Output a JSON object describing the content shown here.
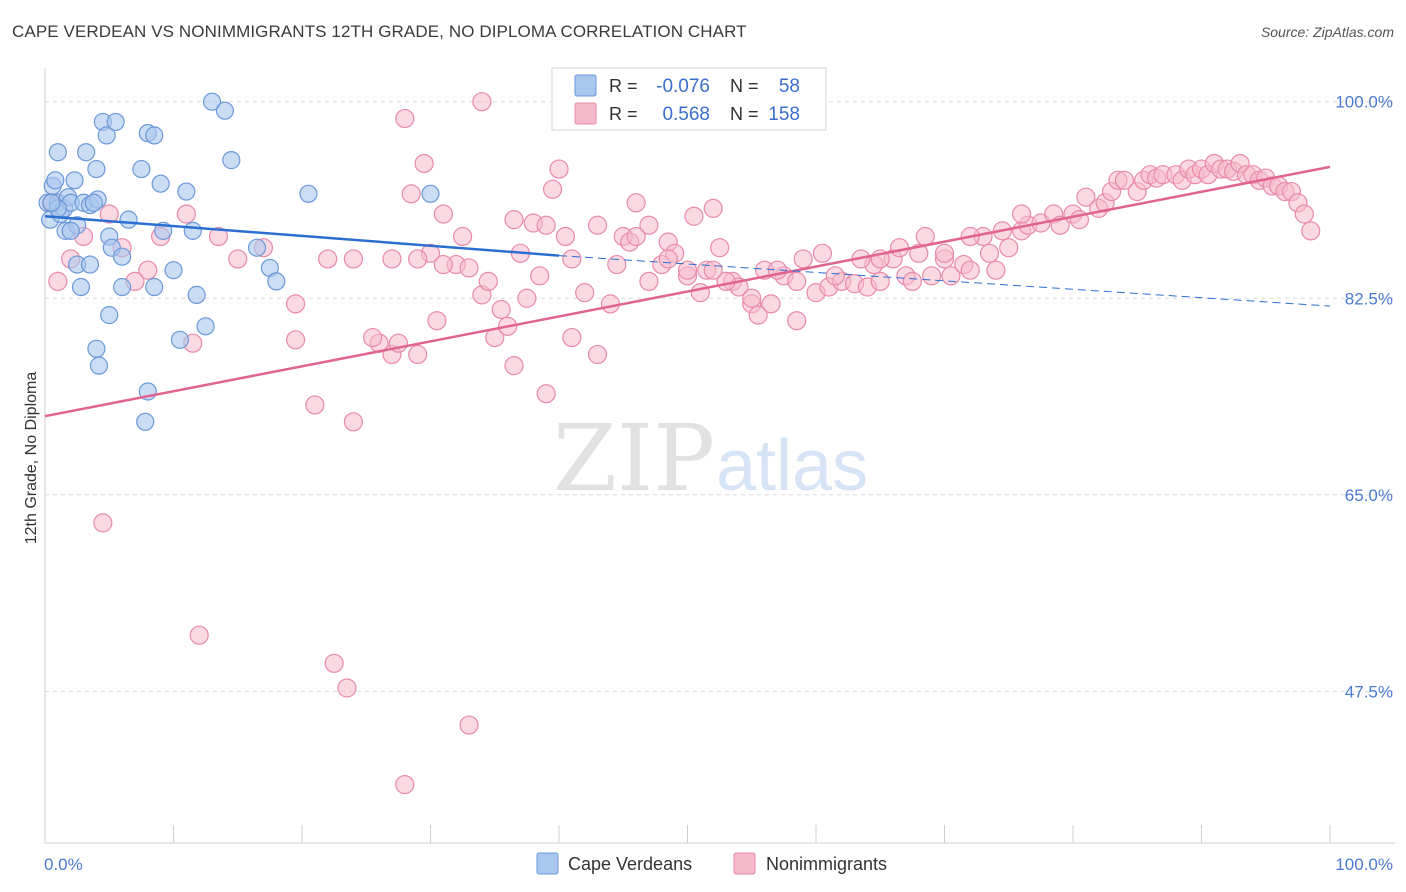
{
  "header": {
    "title": "CAPE VERDEAN VS NONIMMIGRANTS 12TH GRADE, NO DIPLOMA CORRELATION CHART",
    "source": "Source: ZipAtlas.com"
  },
  "watermark": {
    "zip": "ZIP",
    "atlas": "atlas"
  },
  "stats": {
    "r_label": "R =",
    "n_label": "N =",
    "blue": {
      "r": "-0.076",
      "n": "58"
    },
    "pink": {
      "r": "0.568",
      "n": "158"
    }
  },
  "colors": {
    "blue_fill": "#a9c6ef",
    "blue_stroke": "#6b98d8",
    "blue_line": "#2c6fd1",
    "pink_fill": "#f6b9cc",
    "pink_stroke": "#e98aa9",
    "pink_line": "#e0648f",
    "grid": "#dcdcdc",
    "tick_text": "#4a7bd0"
  },
  "chart_data": {
    "type": "scatter",
    "title": "CAPE VERDEAN VS NONIMMIGRANTS 12TH GRADE, NO DIPLOMA CORRELATION CHART",
    "xlabel": "",
    "ylabel": "12th Grade, No Diploma",
    "xlim": [
      0,
      100
    ],
    "ylim": [
      34,
      103
    ],
    "y_ticks": [
      100.0,
      82.5,
      65.0,
      47.5
    ],
    "y_tick_labels": [
      "100.0%",
      "82.5%",
      "65.0%",
      "47.5%"
    ],
    "x_tick_labels": [
      "0.0%",
      "100.0%"
    ],
    "grid": true,
    "legend_position": "bottom-center",
    "series": [
      {
        "name": "Cape Verdeans",
        "r": -0.076,
        "n": 58,
        "trend": {
          "x": [
            0,
            40
          ],
          "y": [
            89.8,
            86.3
          ],
          "dashed_to": [
            100,
            81.8
          ]
        },
        "points": [
          [
            0.2,
            91.0
          ],
          [
            0.4,
            89.5
          ],
          [
            0.6,
            92.5
          ],
          [
            0.8,
            93.0
          ],
          [
            1.0,
            91.0
          ],
          [
            1.2,
            90.0
          ],
          [
            1.0,
            95.5
          ],
          [
            1.5,
            90.5
          ],
          [
            1.8,
            91.5
          ],
          [
            1.6,
            88.5
          ],
          [
            2.0,
            91.0
          ],
          [
            2.5,
            89.0
          ],
          [
            2.3,
            93.0
          ],
          [
            3.0,
            91.0
          ],
          [
            3.2,
            95.5
          ],
          [
            3.5,
            90.8
          ],
          [
            4.0,
            94.0
          ],
          [
            4.1,
            91.3
          ],
          [
            4.5,
            98.2
          ],
          [
            4.8,
            97.0
          ],
          [
            5.5,
            98.2
          ],
          [
            5.0,
            88.0
          ],
          [
            5.2,
            87.0
          ],
          [
            6.0,
            86.2
          ],
          [
            6.5,
            89.5
          ],
          [
            7.5,
            94.0
          ],
          [
            8.0,
            97.2
          ],
          [
            8.5,
            97.0
          ],
          [
            9.0,
            92.7
          ],
          [
            9.2,
            88.5
          ],
          [
            10.0,
            85.0
          ],
          [
            10.5,
            78.8
          ],
          [
            11.0,
            92.0
          ],
          [
            11.5,
            88.5
          ],
          [
            11.8,
            82.8
          ],
          [
            12.5,
            80.0
          ],
          [
            13.0,
            100.0
          ],
          [
            14.0,
            99.2
          ],
          [
            14.5,
            94.8
          ],
          [
            16.5,
            87.0
          ],
          [
            17.5,
            85.2
          ],
          [
            18.0,
            84.0
          ],
          [
            20.5,
            91.8
          ],
          [
            30.0,
            91.8
          ],
          [
            2.5,
            85.5
          ],
          [
            3.5,
            85.5
          ],
          [
            2.8,
            83.5
          ],
          [
            6.0,
            83.5
          ],
          [
            8.5,
            83.5
          ],
          [
            5.0,
            81.0
          ],
          [
            4.0,
            78.0
          ],
          [
            4.2,
            76.5
          ],
          [
            8.0,
            74.2
          ],
          [
            7.8,
            71.5
          ],
          [
            2.0,
            88.5
          ],
          [
            1.0,
            90.5
          ],
          [
            0.5,
            91.0
          ],
          [
            3.8,
            91.0
          ]
        ]
      },
      {
        "name": "Nonimmigrants",
        "r": 0.568,
        "n": 158,
        "trend": {
          "x": [
            0,
            100
          ],
          "y": [
            72.0,
            94.2
          ]
        },
        "points": [
          [
            4.5,
            62.5
          ],
          [
            12.0,
            52.5
          ],
          [
            22.5,
            50.0
          ],
          [
            23.5,
            47.8
          ],
          [
            33.0,
            44.5
          ],
          [
            28.0,
            39.2
          ],
          [
            11.5,
            78.5
          ],
          [
            19.5,
            78.8
          ],
          [
            21.0,
            73.0
          ],
          [
            24.0,
            71.5
          ],
          [
            27.0,
            77.5
          ],
          [
            26.0,
            78.5
          ],
          [
            27.5,
            78.5
          ],
          [
            29.0,
            77.5
          ],
          [
            30.5,
            80.5
          ],
          [
            27.0,
            86.0
          ],
          [
            28.5,
            91.8
          ],
          [
            30.0,
            86.5
          ],
          [
            32.0,
            85.5
          ],
          [
            33.0,
            85.2
          ],
          [
            29.5,
            94.5
          ],
          [
            31.0,
            90.0
          ],
          [
            34.0,
            82.8
          ],
          [
            35.5,
            81.5
          ],
          [
            35.0,
            79.0
          ],
          [
            36.5,
            89.5
          ],
          [
            37.0,
            86.5
          ],
          [
            38.0,
            89.2
          ],
          [
            39.0,
            89.0
          ],
          [
            39.5,
            92.2
          ],
          [
            40.0,
            94.0
          ],
          [
            39.0,
            74.0
          ],
          [
            41.0,
            79.0
          ],
          [
            42.0,
            83.0
          ],
          [
            43.0,
            77.5
          ],
          [
            44.0,
            82.0
          ],
          [
            45.0,
            88.0
          ],
          [
            45.5,
            87.5
          ],
          [
            46.0,
            91.0
          ],
          [
            47.0,
            89.0
          ],
          [
            48.0,
            85.5
          ],
          [
            48.5,
            87.5
          ],
          [
            49.0,
            86.5
          ],
          [
            50.0,
            84.5
          ],
          [
            50.5,
            89.8
          ],
          [
            51.0,
            83.0
          ],
          [
            51.5,
            85.0
          ],
          [
            52.0,
            90.5
          ],
          [
            52.5,
            87.0
          ],
          [
            53.5,
            84.0
          ],
          [
            54.0,
            83.5
          ],
          [
            55.0,
            82.0
          ],
          [
            55.5,
            81.0
          ],
          [
            56.0,
            85.0
          ],
          [
            56.5,
            82.0
          ],
          [
            57.5,
            84.5
          ],
          [
            58.5,
            80.5
          ],
          [
            59.0,
            86.0
          ],
          [
            60.0,
            83.0
          ],
          [
            61.0,
            83.5
          ],
          [
            62.0,
            84.0
          ],
          [
            63.0,
            83.8
          ],
          [
            64.0,
            83.5
          ],
          [
            64.5,
            85.5
          ],
          [
            65.0,
            84.0
          ],
          [
            66.0,
            86.0
          ],
          [
            67.0,
            84.5
          ],
          [
            67.5,
            84.0
          ],
          [
            68.0,
            86.5
          ],
          [
            69.0,
            84.5
          ],
          [
            70.0,
            86.0
          ],
          [
            70.5,
            84.5
          ],
          [
            71.5,
            85.5
          ],
          [
            72.0,
            85.0
          ],
          [
            73.0,
            88.0
          ],
          [
            73.5,
            86.5
          ],
          [
            74.0,
            85.0
          ],
          [
            75.0,
            87.0
          ],
          [
            76.0,
            88.5
          ],
          [
            76.5,
            89.0
          ],
          [
            77.5,
            89.2
          ],
          [
            78.5,
            90.0
          ],
          [
            79.0,
            89.0
          ],
          [
            80.0,
            90.0
          ],
          [
            80.5,
            89.5
          ],
          [
            81.0,
            91.5
          ],
          [
            82.0,
            90.5
          ],
          [
            82.5,
            91.0
          ],
          [
            83.0,
            92.0
          ],
          [
            83.5,
            93.0
          ],
          [
            84.0,
            93.0
          ],
          [
            85.0,
            92.0
          ],
          [
            85.5,
            93.0
          ],
          [
            86.0,
            93.5
          ],
          [
            86.5,
            93.2
          ],
          [
            87.0,
            93.5
          ],
          [
            88.0,
            93.5
          ],
          [
            88.5,
            93.0
          ],
          [
            89.0,
            94.0
          ],
          [
            89.5,
            93.5
          ],
          [
            90.0,
            94.0
          ],
          [
            90.5,
            93.5
          ],
          [
            91.0,
            94.5
          ],
          [
            91.5,
            94.0
          ],
          [
            92.0,
            94.0
          ],
          [
            92.5,
            93.8
          ],
          [
            93.0,
            94.5
          ],
          [
            93.5,
            93.5
          ],
          [
            94.0,
            93.5
          ],
          [
            94.5,
            93.0
          ],
          [
            95.0,
            93.2
          ],
          [
            95.5,
            92.5
          ],
          [
            96.0,
            92.5
          ],
          [
            96.5,
            92.0
          ],
          [
            97.0,
            92.0
          ],
          [
            97.5,
            91.0
          ],
          [
            98.0,
            90.0
          ],
          [
            98.5,
            88.5
          ],
          [
            76.0,
            90.0
          ],
          [
            74.5,
            88.5
          ],
          [
            72.0,
            88.0
          ],
          [
            70.0,
            86.5
          ],
          [
            68.5,
            88.0
          ],
          [
            66.5,
            87.0
          ],
          [
            65.0,
            86.0
          ],
          [
            63.5,
            86.0
          ],
          [
            61.5,
            84.5
          ],
          [
            60.5,
            86.5
          ],
          [
            58.5,
            84.0
          ],
          [
            57.0,
            85.0
          ],
          [
            55.0,
            82.5
          ],
          [
            53.0,
            84.0
          ],
          [
            52.0,
            85.0
          ],
          [
            50.0,
            85.0
          ],
          [
            48.5,
            86.0
          ],
          [
            47.0,
            84.0
          ],
          [
            46.0,
            88.0
          ],
          [
            44.5,
            85.5
          ],
          [
            43.0,
            89.0
          ],
          [
            41.0,
            86.0
          ],
          [
            40.5,
            88.0
          ],
          [
            38.5,
            84.5
          ],
          [
            37.5,
            82.5
          ],
          [
            36.0,
            80.0
          ],
          [
            34.5,
            84.0
          ],
          [
            32.5,
            88.0
          ],
          [
            31.0,
            85.5
          ],
          [
            29.0,
            86.0
          ],
          [
            25.5,
            79.0
          ],
          [
            24.0,
            86.0
          ],
          [
            22.0,
            86.0
          ],
          [
            19.5,
            82.0
          ],
          [
            17.0,
            87.0
          ],
          [
            15.0,
            86.0
          ],
          [
            13.5,
            88.0
          ],
          [
            11.0,
            90.0
          ],
          [
            9.0,
            88.0
          ],
          [
            8.0,
            85.0
          ],
          [
            7.0,
            84.0
          ],
          [
            6.0,
            87.0
          ],
          [
            5.0,
            90.0
          ],
          [
            3.0,
            88.0
          ],
          [
            2.0,
            86.0
          ],
          [
            1.0,
            84.0
          ],
          [
            0.5,
            91.0
          ],
          [
            34.0,
            100.0
          ],
          [
            28.0,
            98.5
          ],
          [
            36.5,
            76.5
          ]
        ]
      }
    ]
  },
  "legend": {
    "blue_label": "Cape Verdeans",
    "pink_label": "Nonimmigrants"
  }
}
